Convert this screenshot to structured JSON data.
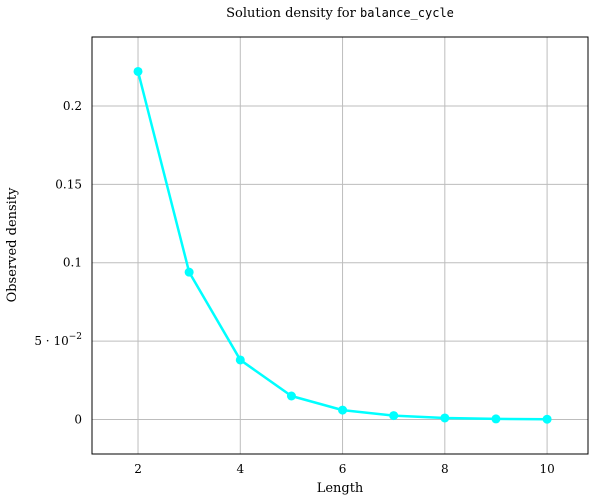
{
  "chart_data": {
    "type": "line",
    "title_prefix": "Solution density for ",
    "title_code": "balance_cycle",
    "xlabel": "Length",
    "ylabel": "Observed density",
    "xlim": [
      1.1,
      10.8
    ],
    "ylim": [
      -0.022,
      0.244
    ],
    "grid": true,
    "x_ticks": [
      {
        "value": 2,
        "label": "2"
      },
      {
        "value": 4,
        "label": "4"
      },
      {
        "value": 6,
        "label": "6"
      },
      {
        "value": 8,
        "label": "8"
      },
      {
        "value": 10,
        "label": "10"
      }
    ],
    "y_ticks": [
      {
        "value": 0,
        "label": "0"
      },
      {
        "value": 0.05,
        "label": "5 · 10",
        "exponent": "−2"
      },
      {
        "value": 0.1,
        "label": "0.1"
      },
      {
        "value": 0.15,
        "label": "0.15"
      },
      {
        "value": 0.2,
        "label": "0.2"
      }
    ],
    "series": [
      {
        "color": "#00ffff",
        "x": [
          2,
          3,
          4,
          5,
          6,
          7,
          8,
          9,
          10
        ],
        "values": [
          0.222,
          0.094,
          0.038,
          0.015,
          0.006,
          0.0025,
          0.001,
          0.0004,
          0.0002
        ]
      }
    ]
  }
}
